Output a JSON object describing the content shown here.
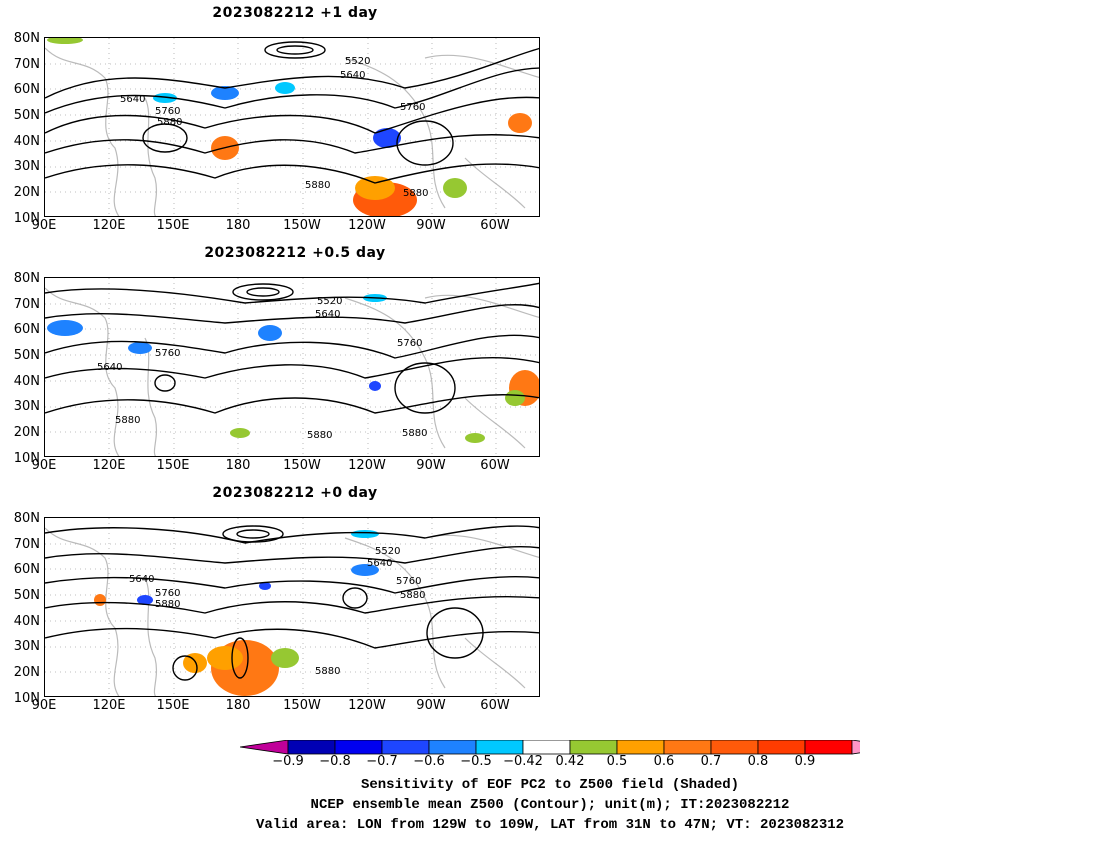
{
  "panels": [
    {
      "title": "2023082212  +1 day",
      "contours": [
        "5520",
        "5640",
        "5640",
        "5760",
        "5760",
        "5880",
        "5880",
        "5880"
      ]
    },
    {
      "title": "2023082212  +0.5 day",
      "contours": [
        "5520",
        "5640",
        "5640",
        "5760",
        "5760",
        "5880",
        "5880",
        "5880"
      ]
    },
    {
      "title": "2023082212  +0 day",
      "contours": [
        "5520",
        "5640",
        "5640",
        "5760",
        "5760",
        "5880",
        "5880",
        "5880"
      ]
    }
  ],
  "lat_labels": [
    "80N",
    "70N",
    "60N",
    "50N",
    "40N",
    "30N",
    "20N",
    "10N"
  ],
  "lon_labels": [
    "90E",
    "120E",
    "150E",
    "180",
    "150W",
    "120W",
    "90W",
    "60W"
  ],
  "colorbar": {
    "colors": [
      "#c00099",
      "#0000b4",
      "#0000f0",
      "#1e46ff",
      "#1e82ff",
      "#00c8ff",
      "#ffffff",
      "#96c832",
      "#ffa000",
      "#ff7814",
      "#ff5a0a",
      "#ff3c00",
      "#ff0000",
      "#ff96c8"
    ],
    "labels": [
      "−0.9",
      "−0.8",
      "−0.7",
      "−0.6",
      "−0.5",
      "−0.42",
      "0.42",
      "0.5",
      "0.6",
      "0.7",
      "0.8",
      "0.9"
    ]
  },
  "captions": [
    "Sensitivity of EOF PC2 to Z500 field (Shaded)",
    "NCEP ensemble mean Z500 (Contour); unit(m); IT:2023082212",
    "Valid area: LON from 129W to 109W, LAT from 31N to 47N; VT: 2023082312"
  ]
}
